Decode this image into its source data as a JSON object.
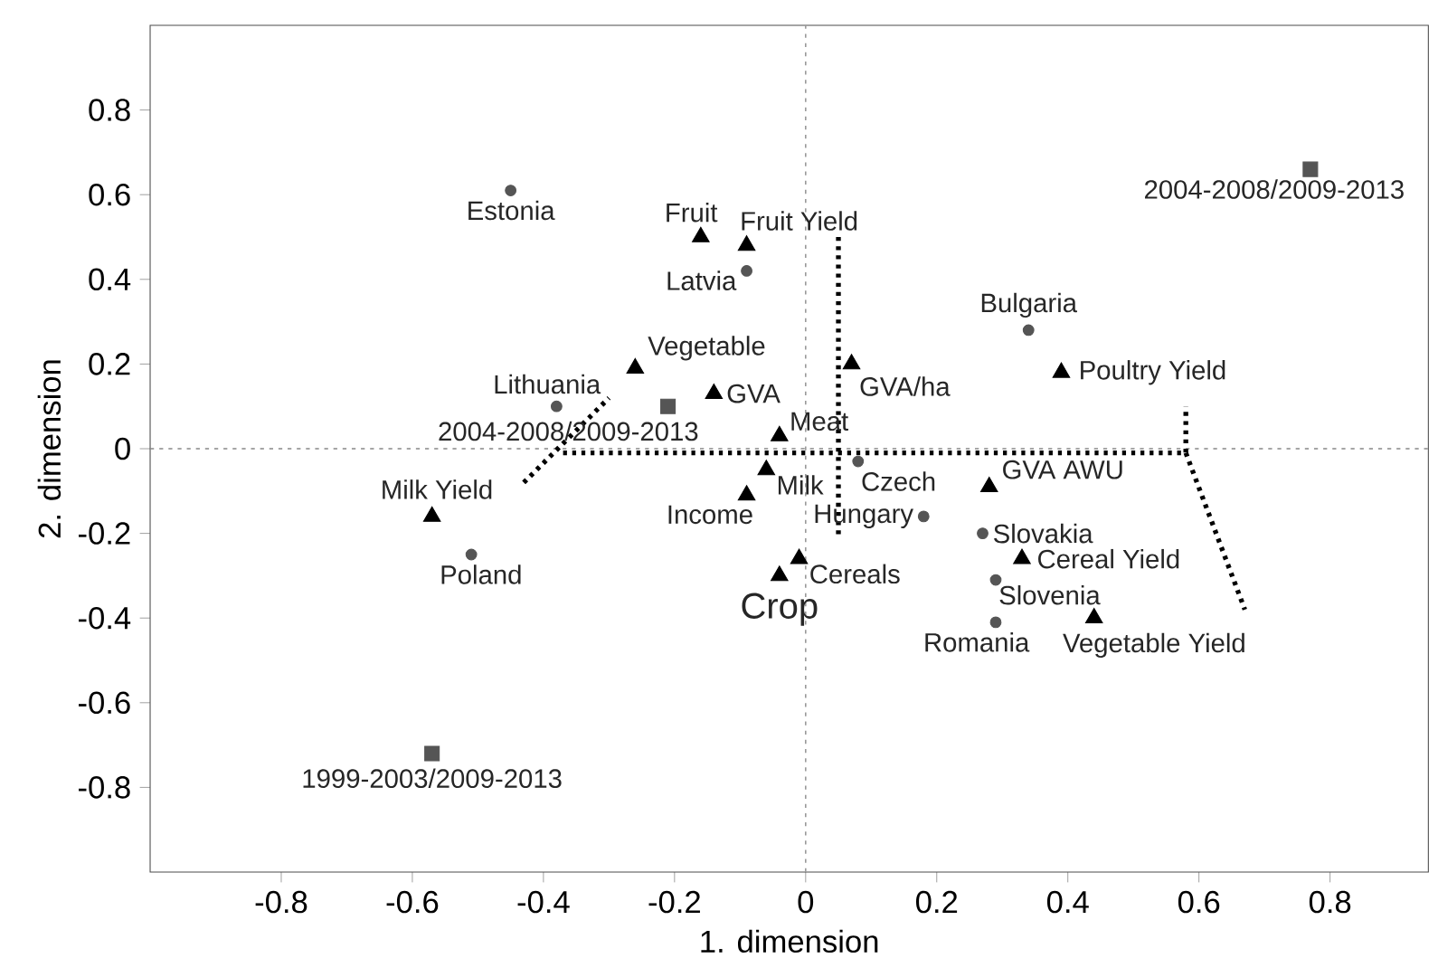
{
  "chart_data": {
    "type": "scatter",
    "xlabel": "1. dimension",
    "ylabel": "2. dimension",
    "xlim": [
      -1.0,
      0.95
    ],
    "ylim": [
      -1.0,
      1.0
    ],
    "xticks": [
      -0.8,
      -0.6,
      -0.4,
      -0.2,
      0,
      0.2,
      0.4,
      0.6,
      0.8
    ],
    "yticks": [
      -0.8,
      -0.6,
      -0.4,
      -0.2,
      0,
      0.2,
      0.4,
      0.6,
      0.8
    ],
    "grid": false,
    "series": [
      {
        "marker": "circle",
        "color": "#555555",
        "x": [
          -0.45,
          -0.09,
          -0.38,
          -0.51,
          0.34,
          0.08,
          0.18,
          0.27,
          0.29,
          0.29
        ],
        "values": [
          0.61,
          0.42,
          0.1,
          -0.25,
          0.28,
          -0.03,
          -0.16,
          -0.2,
          -0.31,
          -0.41
        ]
      },
      {
        "marker": "triangle",
        "color": "#000000",
        "x": [
          -0.16,
          -0.09,
          -0.26,
          -0.14,
          0.07,
          -0.04,
          -0.06,
          -0.09,
          -0.01,
          -0.04,
          -0.57,
          0.39,
          0.28,
          0.33,
          0.44
        ],
        "values": [
          0.5,
          0.48,
          0.19,
          0.13,
          0.2,
          0.03,
          -0.05,
          -0.11,
          -0.26,
          -0.3,
          -0.16,
          0.18,
          -0.09,
          -0.26,
          -0.4
        ]
      },
      {
        "marker": "square",
        "color": "#555555",
        "x": [
          0.77,
          -0.21,
          -0.57
        ],
        "values": [
          0.66,
          0.1,
          -0.72
        ]
      },
      {
        "type": "line",
        "marker": "none",
        "line_style": "dotted",
        "color": "#000000",
        "x": [
          -0.43,
          -0.3
        ],
        "values": [
          -0.08,
          0.12
        ]
      },
      {
        "type": "line",
        "marker": "none",
        "line_style": "dotted",
        "color": "#000000",
        "x": [
          -0.37,
          0.58,
          0.58
        ],
        "values": [
          -0.01,
          -0.01,
          0.1
        ]
      },
      {
        "type": "line",
        "marker": "none",
        "line_style": "dotted",
        "color": "#000000",
        "x": [
          0.58,
          0.67
        ],
        "values": [
          -0.01,
          -0.38
        ]
      },
      {
        "type": "line",
        "marker": "none",
        "line_style": "dotted",
        "color": "#000000",
        "x": [
          0.05,
          0.05
        ],
        "values": [
          0.5,
          -0.21
        ]
      }
    ],
    "ref_lines": [
      {
        "axis": "x",
        "value": 0,
        "color": "#999999",
        "line_style": "dotted"
      },
      {
        "axis": "y",
        "value": 0,
        "color": "#888888",
        "line_style": "dotted"
      }
    ],
    "annotations": [
      {
        "text": "Estonia",
        "x": -0.45,
        "y": 0.61
      },
      {
        "text": "Latvia",
        "x": -0.09,
        "y": 0.42
      },
      {
        "text": "Lithuania",
        "x": -0.38,
        "y": 0.1
      },
      {
        "text": "Poland",
        "x": -0.51,
        "y": -0.25
      },
      {
        "text": "Bulgaria",
        "x": 0.34,
        "y": 0.28
      },
      {
        "text": "Czech",
        "x": 0.08,
        "y": -0.03
      },
      {
        "text": "Hungary",
        "x": 0.18,
        "y": -0.16
      },
      {
        "text": "Slovakia",
        "x": 0.27,
        "y": -0.2
      },
      {
        "text": "Slovenia",
        "x": 0.29,
        "y": -0.31
      },
      {
        "text": "Romania",
        "x": 0.29,
        "y": -0.41
      },
      {
        "text": "Fruit",
        "x": -0.16,
        "y": 0.5
      },
      {
        "text": "Fruit Yield",
        "x": -0.09,
        "y": 0.48
      },
      {
        "text": "Vegetable",
        "x": -0.26,
        "y": 0.19
      },
      {
        "text": "GVA",
        "x": -0.14,
        "y": 0.13
      },
      {
        "text": "GVA/ha",
        "x": 0.07,
        "y": 0.2
      },
      {
        "text": "Meat",
        "x": -0.04,
        "y": 0.03
      },
      {
        "text": "Milk",
        "x": -0.06,
        "y": -0.05
      },
      {
        "text": "Income",
        "x": -0.09,
        "y": -0.11
      },
      {
        "text": "Cereals",
        "x": -0.01,
        "y": -0.26
      },
      {
        "text": "Crop",
        "x": -0.04,
        "y": -0.3
      },
      {
        "text": "Milk Yield",
        "x": -0.57,
        "y": -0.16
      },
      {
        "text": "Poultry Yield",
        "x": 0.39,
        "y": 0.18
      },
      {
        "text": "GVA AWU",
        "x": 0.28,
        "y": -0.09
      },
      {
        "text": "Cereal Yield",
        "x": 0.33,
        "y": -0.26
      },
      {
        "text": "Vegetable Yield",
        "x": 0.44,
        "y": -0.4
      },
      {
        "text": "2004-2008/2009-2013",
        "x": 0.77,
        "y": 0.66
      },
      {
        "text": "2004-2008/2009-2013",
        "x": -0.21,
        "y": 0.1
      },
      {
        "text": "1999-2003/2009-2013",
        "x": -0.57,
        "y": -0.72
      }
    ]
  }
}
